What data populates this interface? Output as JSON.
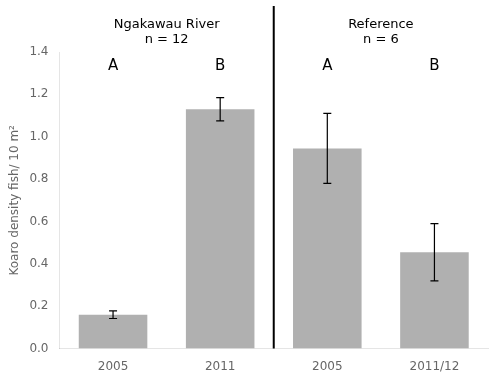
{
  "chart_data": {
    "type": "bar",
    "groups": [
      {
        "name": "Ngakawau River\nn = 12",
        "categories": [
          "2005",
          "2011"
        ],
        "values": [
          0.16,
          1.13
        ],
        "errors": [
          0.018,
          0.055
        ]
      },
      {
        "name": "Reference\nn = 6",
        "categories": [
          "2005",
          "2011/12"
        ],
        "values": [
          0.945,
          0.455
        ],
        "errors": [
          0.165,
          0.135
        ]
      }
    ],
    "annotations": [
      {
        "text": "A",
        "y": 1.3
      },
      {
        "text": "B",
        "y": 1.3
      },
      {
        "text": "A",
        "y": 1.3
      },
      {
        "text": "B",
        "y": 1.3
      }
    ],
    "y_label": "Koaro density fish/ 10 m²",
    "color": "#b0b0b0",
    "ylim": [
      0,
      1.4
    ],
    "yticks": [
      {
        "value": 0,
        "label": "0.0"
      },
      0.2,
      0.4,
      0.6,
      0.8,
      {
        "value": 1,
        "label": "1.0"
      },
      1.2,
      1.4
    ],
    "grid": false
  }
}
